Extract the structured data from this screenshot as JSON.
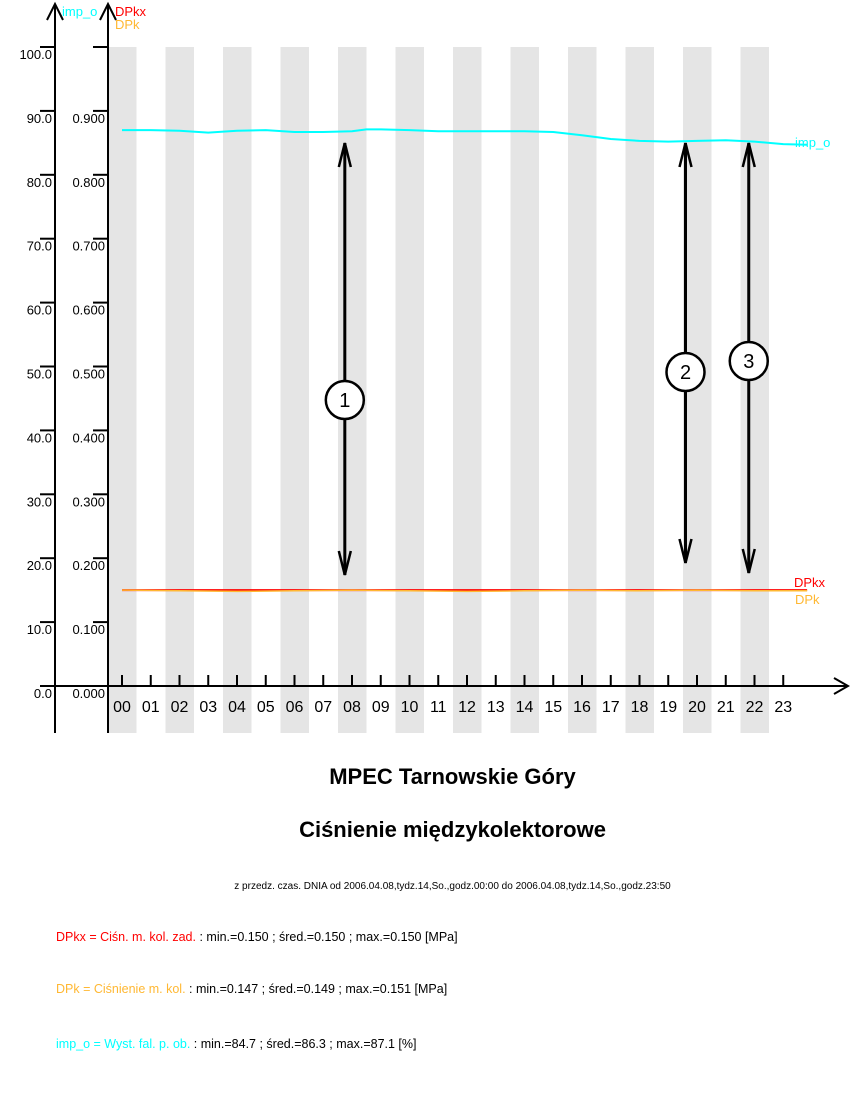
{
  "chart_data": {
    "type": "line",
    "title": "MPEC Tarnowskie Góry",
    "subtitle": "Ciśnienie międzykolektorowe",
    "period": "z przedz. czas. DNIA od 2006.04.08,tydz.14,So.,godz.00:00 do 2006.04.08,tydz.14,So.,godz.23:50",
    "x_ticks": [
      "00",
      "01",
      "02",
      "03",
      "04",
      "05",
      "06",
      "07",
      "08",
      "09",
      "10",
      "11",
      "12",
      "13",
      "14",
      "15",
      "16",
      "17",
      "18",
      "19",
      "20",
      "21",
      "22",
      "23"
    ],
    "y_axis_left": {
      "label": "imp_o",
      "range": [
        0,
        100
      ],
      "ticks": [
        "0.0",
        "10.0",
        "20.0",
        "30.0",
        "40.0",
        "50.0",
        "60.0",
        "70.0",
        "80.0",
        "90.0",
        "100.0"
      ]
    },
    "y_axis_right": {
      "labels": [
        "DPkx",
        "DPk"
      ],
      "range": [
        0,
        1.0
      ],
      "ticks": [
        "0.000",
        "0.100",
        "0.200",
        "0.300",
        "0.400",
        "0.500",
        "0.600",
        "0.700",
        "0.800",
        "0.900"
      ]
    },
    "grid": "alternating gray hour stripes",
    "series": [
      {
        "name": "imp_o",
        "axis": "left",
        "color": "#00ffff",
        "x": [
          0,
          1,
          2,
          3,
          4,
          5,
          6,
          7,
          8,
          8.5,
          9,
          10,
          11,
          12,
          13,
          14,
          15,
          16,
          17,
          18,
          19,
          20,
          21,
          22,
          23,
          23.83
        ],
        "values": [
          87.0,
          87.0,
          86.9,
          86.6,
          86.9,
          87.0,
          86.7,
          86.7,
          86.8,
          87.1,
          87.1,
          87.0,
          86.8,
          86.8,
          86.8,
          86.8,
          86.7,
          86.2,
          85.6,
          85.3,
          85.2,
          85.3,
          85.4,
          85.2,
          84.8,
          84.7
        ]
      },
      {
        "name": "DPkx",
        "axis": "right",
        "color": "#ff0000",
        "x": [
          0,
          23.83
        ],
        "values": [
          0.15,
          0.15
        ]
      },
      {
        "name": "DPk",
        "axis": "right",
        "color": "#ffb833",
        "x": [
          0,
          2,
          4,
          6,
          8,
          10,
          12,
          14,
          16,
          18,
          20,
          22,
          23.83
        ],
        "values": [
          0.15,
          0.149,
          0.148,
          0.149,
          0.15,
          0.149,
          0.148,
          0.149,
          0.15,
          0.149,
          0.15,
          0.149,
          0.149
        ]
      }
    ],
    "markers": [
      {
        "label": "1",
        "hour": 7.75
      },
      {
        "label": "2",
        "hour": 19.6
      },
      {
        "label": "3",
        "hour": 21.8
      }
    ]
  },
  "legend": [
    {
      "name": "DPkx = Ciśn. m. kol. zad.",
      "stats": " : min.=0.150 ; śred.=0.150 ; max.=0.150 [MPa]",
      "color": "#ff0000"
    },
    {
      "name": "DPk = Ciśnienie m. kol.",
      "stats": " : min.=0.147 ; śred.=0.149 ; max.=0.151 [MPa]",
      "color": "#ffb833"
    },
    {
      "name": "imp_o = Wyst. fal. p. ob.",
      "stats": " : min.=84.7 ; śred.=86.3 ; max.=87.1 [%]",
      "color": "#00ffff"
    }
  ]
}
